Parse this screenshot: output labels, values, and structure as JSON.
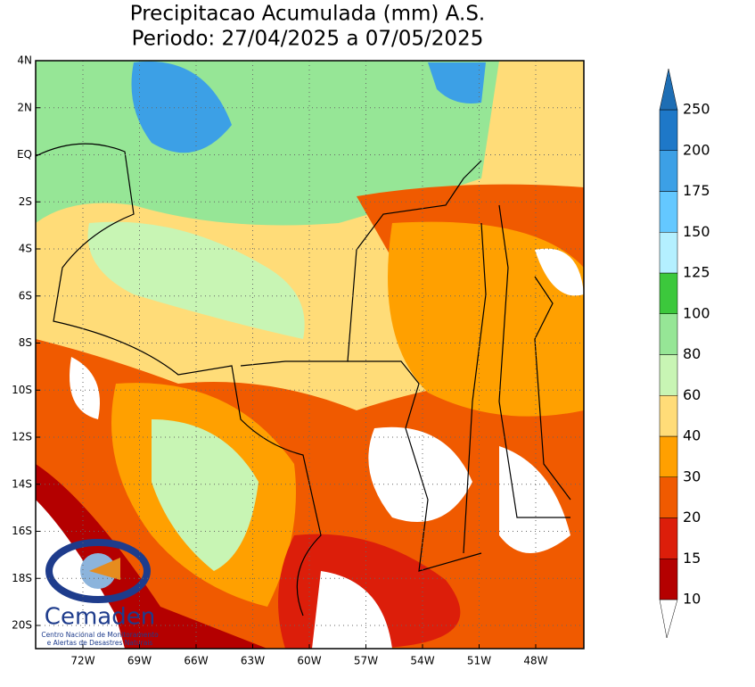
{
  "title": [
    "Precipitacao Acumulada (mm) A.S.",
    "Periodo: 27/04/2025 a 07/05/2025"
  ],
  "lat_labels": [
    "4N",
    "2N",
    "EQ",
    "2S",
    "4S",
    "6S",
    "8S",
    "10S",
    "12S",
    "14S",
    "16S",
    "18S",
    "20S"
  ],
  "lon_labels": [
    "72W",
    "69W",
    "66W",
    "63W",
    "60W",
    "57W",
    "54W",
    "51W",
    "48W"
  ],
  "colorbar": {
    "levels": [
      10,
      15,
      20,
      30,
      40,
      60,
      80,
      100,
      125,
      150,
      175,
      200,
      250
    ],
    "colors": [
      "#b40000",
      "#dc1e0a",
      "#f05a00",
      "#ffa000",
      "#ffdc78",
      "#c8f5b4",
      "#96e696",
      "#3cc83c",
      "#b4f0ff",
      "#64c8ff",
      "#3ca0e6",
      "#1e78c8"
    ],
    "over_color": "#1e6eb4",
    "under_color": "#ffffff"
  },
  "logo": {
    "name": "Cemaden",
    "subtitle": [
      "Centro Nacional de Monitoramento",
      "e Alertas de Desastres Naturais"
    ]
  }
}
